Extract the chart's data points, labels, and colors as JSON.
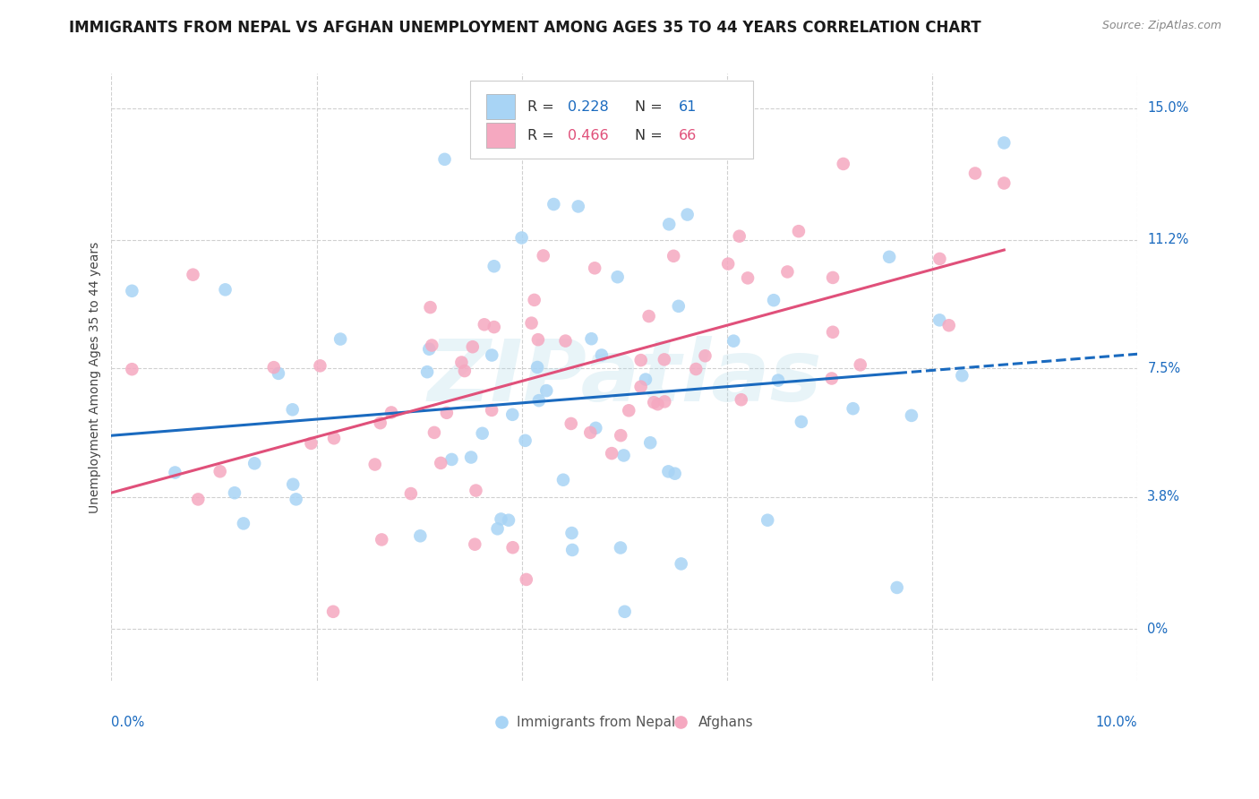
{
  "title": "IMMIGRANTS FROM NEPAL VS AFGHAN UNEMPLOYMENT AMONG AGES 35 TO 44 YEARS CORRELATION CHART",
  "source": "Source: ZipAtlas.com",
  "ylabel": "Unemployment Among Ages 35 to 44 years",
  "xlim": [
    0.0,
    10.0
  ],
  "ylim": [
    -1.5,
    16.0
  ],
  "nepal_color": "#a8d4f5",
  "afghan_color": "#f5a8c0",
  "nepal_line_color": "#1a6abf",
  "afghan_line_color": "#e0507a",
  "nepal_R": 0.228,
  "nepal_N": 61,
  "afghan_R": 0.466,
  "afghan_N": 66,
  "legend_label_nepal": "Immigrants from Nepal",
  "legend_label_afghan": "Afghans",
  "watermark": "ZIPatlas",
  "background_color": "#ffffff",
  "grid_color": "#d0d0d0",
  "title_fontsize": 12,
  "ytick_vals": [
    0.0,
    3.8,
    7.5,
    11.2,
    15.0
  ],
  "ytick_labels": [
    "0%",
    "3.8%",
    "7.5%",
    "11.2%",
    "15.0%"
  ],
  "source_fontsize": 9,
  "nepal_seed": 7,
  "afghan_seed": 13
}
